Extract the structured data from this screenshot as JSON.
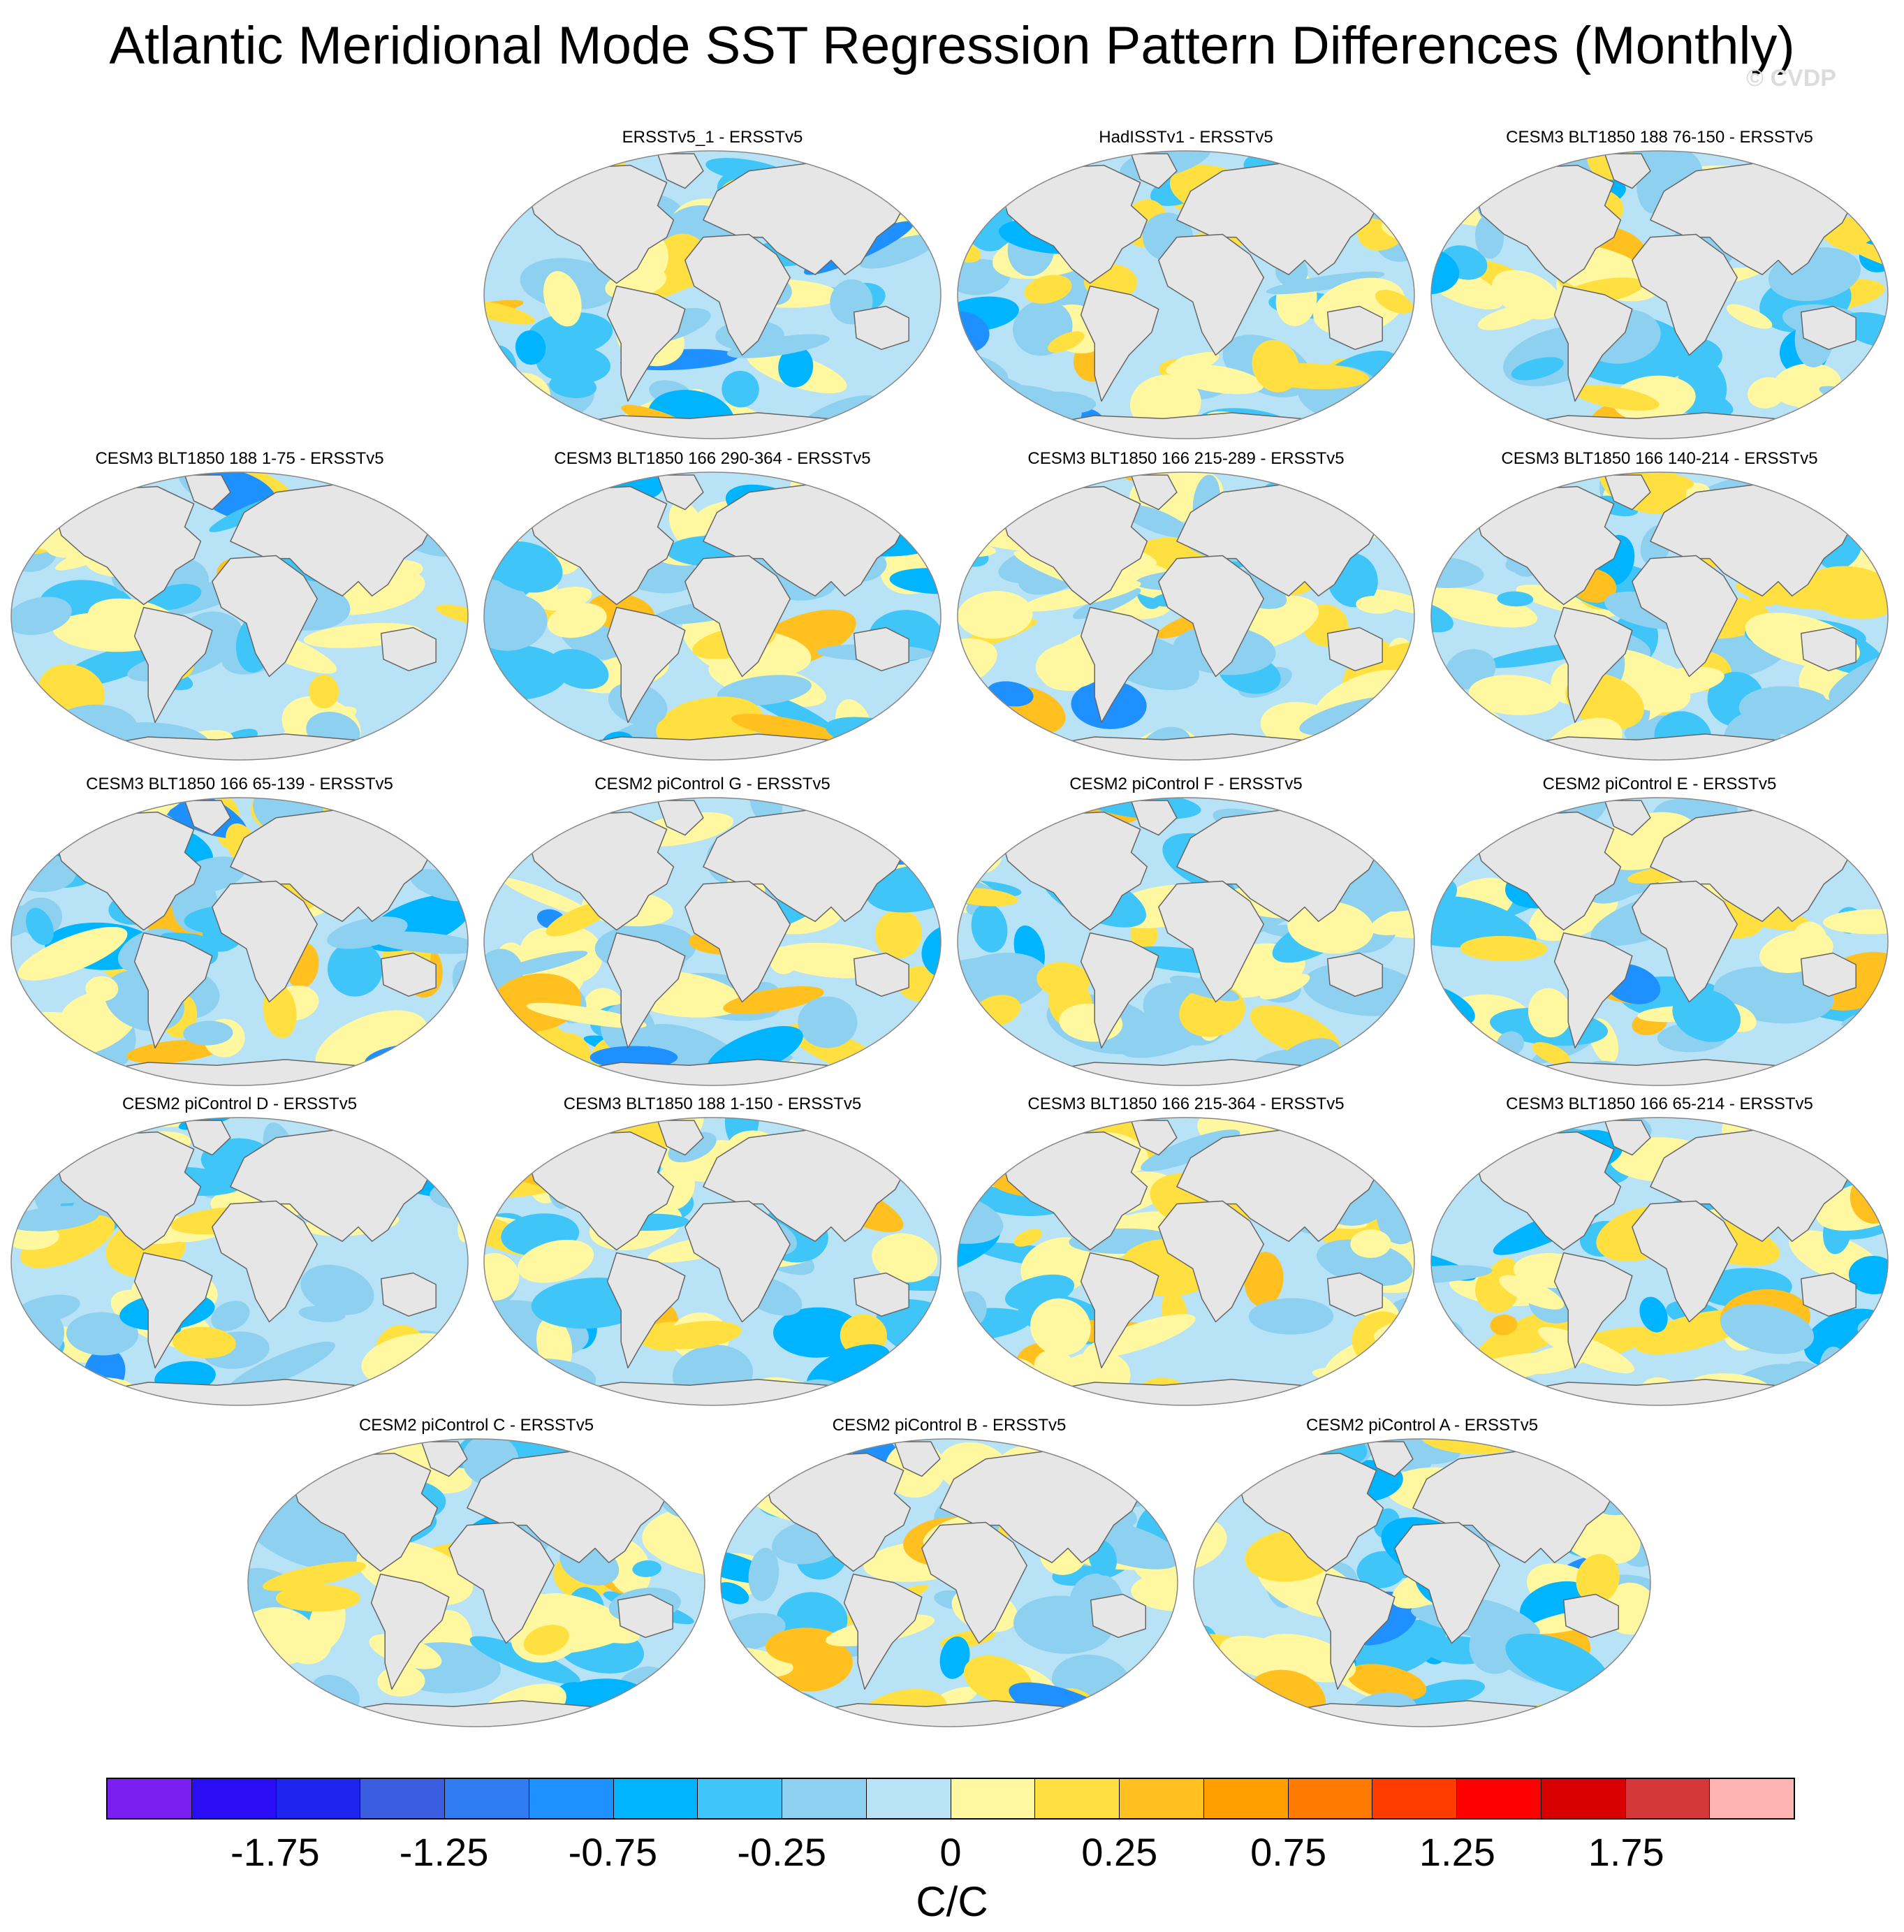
{
  "title": "Atlantic Meridional Mode SST Regression Pattern Differences (Monthly)",
  "watermark": "© CVDP",
  "chart_data": {
    "type": "heatmap",
    "title": "Atlantic Meridional Mode SST Regression Pattern Differences (Monthly)",
    "projection": "Robinson (global)",
    "variable": "SST regression difference",
    "units": "C/C",
    "contour_levels": [
      -2.0,
      -1.75,
      -1.5,
      -1.25,
      -1.0,
      -0.75,
      -0.5,
      -0.25,
      -0.1,
      0,
      0.1,
      0.25,
      0.5,
      0.75,
      1.0,
      1.25,
      1.5,
      1.75,
      2.0
    ],
    "colorbar": {
      "tick_labels": [
        "-1.75",
        "-1.25",
        "-0.75",
        "-0.25",
        "0",
        "0.25",
        "0.75",
        "1.25",
        "1.75"
      ],
      "colors": [
        "#7b1ff0",
        "#2a0cf5",
        "#1d24f0",
        "#3b5ee0",
        "#2f7cf0",
        "#1e90ff",
        "#00b4ff",
        "#3fc5f7",
        "#8ed0f0",
        "#b8e2f5",
        "#fff8a0",
        "#ffe040",
        "#ffc020",
        "#ffa000",
        "#ff7a00",
        "#ff3c00",
        "#ff0000",
        "#d80000",
        "#d43838",
        "#ffb4b4"
      ]
    },
    "panels": [
      {
        "title": "ERSSTv5_1 - ERSSTv5",
        "pattern": 1
      },
      {
        "title": "HadISSTv1 - ERSSTv5",
        "pattern": 2
      },
      {
        "title": "CESM3 BLT1850 188 76-150 - ERSSTv5",
        "pattern": 3
      },
      {
        "title": "CESM3 BLT1850 188 1-75 - ERSSTv5",
        "pattern": 4
      },
      {
        "title": "CESM3 BLT1850 166 290-364 - ERSSTv5",
        "pattern": 5
      },
      {
        "title": "CESM3 BLT1850 166 215-289 - ERSSTv5",
        "pattern": 6
      },
      {
        "title": "CESM3 BLT1850 166 140-214 - ERSSTv5",
        "pattern": 7
      },
      {
        "title": "CESM3 BLT1850 166 65-139 - ERSSTv5",
        "pattern": 8
      },
      {
        "title": "CESM2 piControl G - ERSSTv5",
        "pattern": 9
      },
      {
        "title": "CESM2 piControl F - ERSSTv5",
        "pattern": 10
      },
      {
        "title": "CESM2 piControl E - ERSSTv5",
        "pattern": 11
      },
      {
        "title": "CESM2 piControl D - ERSSTv5",
        "pattern": 12
      },
      {
        "title": "CESM3 BLT1850 188 1-150 - ERSSTv5",
        "pattern": 13
      },
      {
        "title": "CESM3 BLT1850 166 215-364 - ERSSTv5",
        "pattern": 14
      },
      {
        "title": "CESM3 BLT1850 166 65-214 - ERSSTv5",
        "pattern": 15
      },
      {
        "title": "CESM2 piControl C - ERSSTv5",
        "pattern": 16
      },
      {
        "title": "CESM2 piControl B - ERSSTv5",
        "pattern": 17
      },
      {
        "title": "CESM2 piControl A - ERSSTv5",
        "pattern": 18
      }
    ]
  }
}
